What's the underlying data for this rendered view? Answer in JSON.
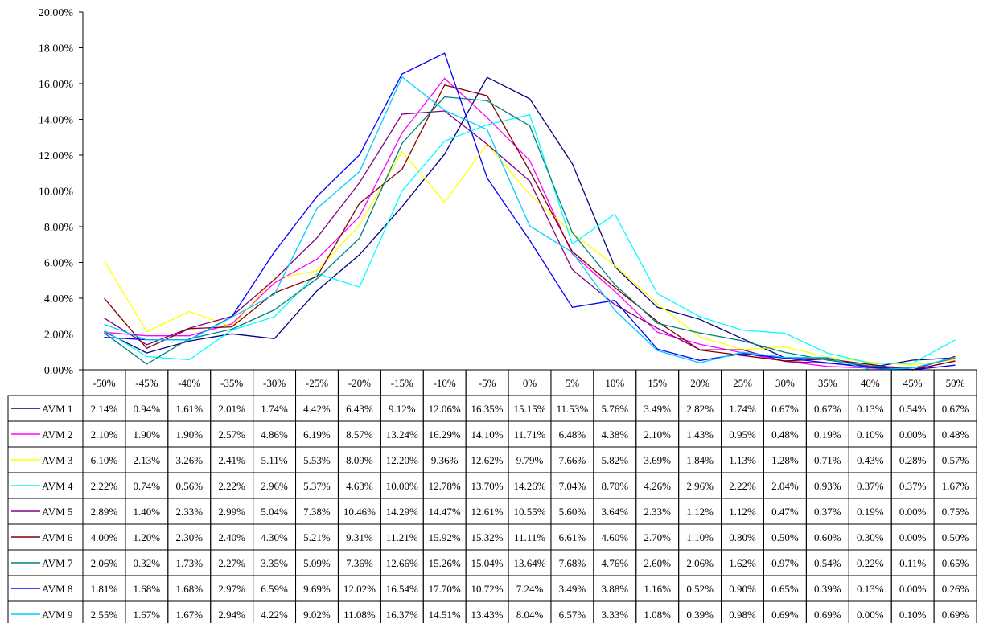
{
  "chart_data": {
    "type": "line",
    "categories": [
      "-50%",
      "-45%",
      "-40%",
      "-35%",
      "-30%",
      "-25%",
      "-20%",
      "-15%",
      "-10%",
      "-5%",
      "0%",
      "5%",
      "10%",
      "15%",
      "20%",
      "25%",
      "30%",
      "35%",
      "40%",
      "45%",
      "50%"
    ],
    "y_ticks": [
      "0.00%",
      "2.00%",
      "4.00%",
      "6.00%",
      "8.00%",
      "10.00%",
      "12.00%",
      "14.00%",
      "16.00%",
      "18.00%",
      "20.00%"
    ],
    "ylim": [
      0,
      20
    ],
    "ylabel": "",
    "xlabel": "",
    "title": "",
    "grid": false,
    "legend_placement": "data table below chart",
    "series": [
      {
        "name": "AVM 1",
        "color": "#000080",
        "values": [
          2.14,
          0.94,
          1.61,
          2.01,
          1.74,
          4.42,
          6.43,
          9.12,
          12.06,
          16.35,
          15.15,
          11.53,
          5.76,
          3.49,
          2.82,
          1.74,
          0.67,
          0.67,
          0.13,
          0.54,
          0.67
        ],
        "labels": [
          "2.14%",
          "0.94%",
          "1.61%",
          "2.01%",
          "1.74%",
          "4.42%",
          "6.43%",
          "9.12%",
          "12.06%",
          "16.35%",
          "15.15%",
          "11.53%",
          "5.76%",
          "3.49%",
          "2.82%",
          "1.74%",
          "0.67%",
          "0.67%",
          "0.13%",
          "0.54%",
          "0.67%"
        ]
      },
      {
        "name": "AVM 2",
        "color": "#ff00ff",
        "values": [
          2.1,
          1.9,
          1.9,
          2.57,
          4.86,
          6.19,
          8.57,
          13.24,
          16.29,
          14.1,
          11.71,
          6.48,
          4.38,
          2.1,
          1.43,
          0.95,
          0.48,
          0.19,
          0.1,
          0.0,
          0.48
        ],
        "labels": [
          "2.10%",
          "1.90%",
          "1.90%",
          "2.57%",
          "4.86%",
          "6.19%",
          "8.57%",
          "13.24%",
          "16.29%",
          "14.10%",
          "11.71%",
          "6.48%",
          "4.38%",
          "2.10%",
          "1.43%",
          "0.95%",
          "0.48%",
          "0.19%",
          "0.10%",
          "0.00%",
          "0.48%"
        ]
      },
      {
        "name": "AVM 3",
        "color": "#ffff00",
        "values": [
          6.1,
          2.13,
          3.26,
          2.41,
          5.11,
          5.53,
          8.09,
          12.2,
          9.36,
          12.62,
          9.79,
          7.66,
          5.82,
          3.69,
          1.84,
          1.13,
          1.28,
          0.71,
          0.43,
          0.28,
          0.57
        ],
        "labels": [
          "6.10%",
          "2.13%",
          "3.26%",
          "2.41%",
          "5.11%",
          "5.53%",
          "8.09%",
          "12.20%",
          "9.36%",
          "12.62%",
          "9.79%",
          "7.66%",
          "5.82%",
          "3.69%",
          "1.84%",
          "1.13%",
          "1.28%",
          "0.71%",
          "0.43%",
          "0.28%",
          "0.57%"
        ]
      },
      {
        "name": "AVM 4",
        "color": "#00ffff",
        "values": [
          2.22,
          0.74,
          0.56,
          2.22,
          2.96,
          5.37,
          4.63,
          10.0,
          12.78,
          13.7,
          14.26,
          7.04,
          8.7,
          4.26,
          2.96,
          2.22,
          2.04,
          0.93,
          0.37,
          0.37,
          1.67
        ],
        "labels": [
          "2.22%",
          "0.74%",
          "0.56%",
          "2.22%",
          "2.96%",
          "5.37%",
          "4.63%",
          "10.00%",
          "12.78%",
          "13.70%",
          "14.26%",
          "7.04%",
          "8.70%",
          "4.26%",
          "2.96%",
          "2.22%",
          "2.04%",
          "0.93%",
          "0.37%",
          "0.37%",
          "1.67%"
        ]
      },
      {
        "name": "AVM 5",
        "color": "#800080",
        "values": [
          2.89,
          1.4,
          2.33,
          2.99,
          5.04,
          7.38,
          10.46,
          14.29,
          14.47,
          12.61,
          10.55,
          5.6,
          3.64,
          2.33,
          1.12,
          1.12,
          0.47,
          0.37,
          0.19,
          0.0,
          0.75
        ],
        "labels": [
          "2.89%",
          "1.40%",
          "2.33%",
          "2.99%",
          "5.04%",
          "7.38%",
          "10.46%",
          "14.29%",
          "14.47%",
          "12.61%",
          "10.55%",
          "5.60%",
          "3.64%",
          "2.33%",
          "1.12%",
          "1.12%",
          "0.47%",
          "0.37%",
          "0.19%",
          "0.00%",
          "0.75%"
        ]
      },
      {
        "name": "AVM 6",
        "color": "#800000",
        "values": [
          4.0,
          1.2,
          2.3,
          2.4,
          4.3,
          5.21,
          9.31,
          11.21,
          15.92,
          15.32,
          11.11,
          6.61,
          4.6,
          2.7,
          1.1,
          0.8,
          0.5,
          0.6,
          0.3,
          0.0,
          0.5
        ],
        "labels": [
          "4.00%",
          "1.20%",
          "2.30%",
          "2.40%",
          "4.30%",
          "5.21%",
          "9.31%",
          "11.21%",
          "15.92%",
          "15.32%",
          "11.11%",
          "6.61%",
          "4.60%",
          "2.70%",
          "1.10%",
          "0.80%",
          "0.50%",
          "0.60%",
          "0.30%",
          "0.00%",
          "0.50%"
        ]
      },
      {
        "name": "AVM 7",
        "color": "#008080",
        "values": [
          2.06,
          0.32,
          1.73,
          2.27,
          3.35,
          5.09,
          7.36,
          12.66,
          15.26,
          15.04,
          13.64,
          7.68,
          4.76,
          2.6,
          2.06,
          1.62,
          0.97,
          0.54,
          0.22,
          0.11,
          0.65
        ],
        "labels": [
          "2.06%",
          "0.32%",
          "1.73%",
          "2.27%",
          "3.35%",
          "5.09%",
          "7.36%",
          "12.66%",
          "15.26%",
          "15.04%",
          "13.64%",
          "7.68%",
          "4.76%",
          "2.60%",
          "2.06%",
          "1.62%",
          "0.97%",
          "0.54%",
          "0.22%",
          "0.11%",
          "0.65%"
        ]
      },
      {
        "name": "AVM 8",
        "color": "#0000ff",
        "values": [
          1.81,
          1.68,
          1.68,
          2.97,
          6.59,
          9.69,
          12.02,
          16.54,
          17.7,
          10.72,
          7.24,
          3.49,
          3.88,
          1.16,
          0.52,
          0.9,
          0.65,
          0.39,
          0.13,
          0.0,
          0.26
        ],
        "labels": [
          "1.81%",
          "1.68%",
          "1.68%",
          "2.97%",
          "6.59%",
          "9.69%",
          "12.02%",
          "16.54%",
          "17.70%",
          "10.72%",
          "7.24%",
          "3.49%",
          "3.88%",
          "1.16%",
          "0.52%",
          "0.90%",
          "0.65%",
          "0.39%",
          "0.13%",
          "0.00%",
          "0.26%"
        ]
      },
      {
        "name": "AVM 9",
        "color": "#00ccff",
        "values": [
          2.55,
          1.67,
          1.67,
          2.94,
          4.22,
          9.02,
          11.08,
          16.37,
          14.51,
          13.43,
          8.04,
          6.57,
          3.33,
          1.08,
          0.39,
          0.98,
          0.69,
          0.69,
          0.0,
          0.1,
          0.69
        ],
        "labels": [
          "2.55%",
          "1.67%",
          "1.67%",
          "2.94%",
          "4.22%",
          "9.02%",
          "11.08%",
          "16.37%",
          "14.51%",
          "13.43%",
          "8.04%",
          "6.57%",
          "3.33%",
          "1.08%",
          "0.39%",
          "0.98%",
          "0.69%",
          "0.69%",
          "0.00%",
          "0.10%",
          "0.69%"
        ]
      }
    ]
  }
}
